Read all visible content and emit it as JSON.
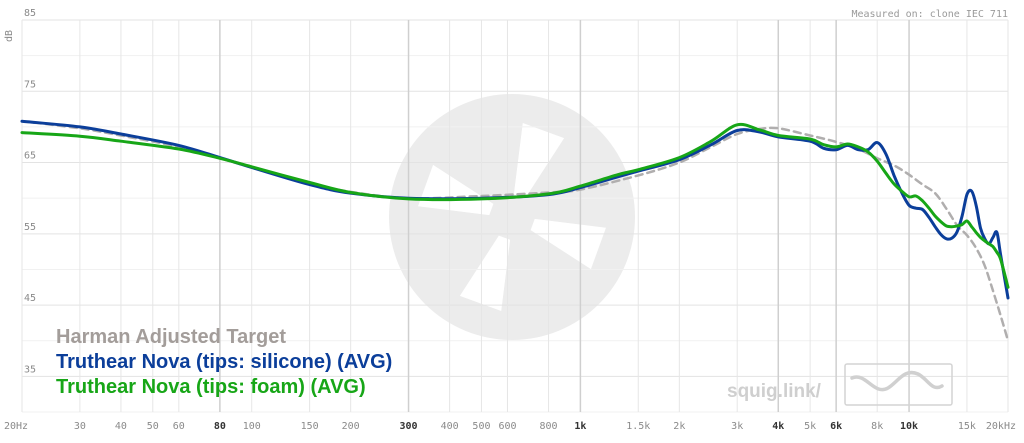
{
  "chart_data": {
    "type": "line",
    "measured_on": "Measured on: clone IEC 711",
    "ylabel": "dB",
    "x_scale": "log",
    "xlim": [
      20,
      20000
    ],
    "ylim": [
      30,
      85
    ],
    "y_ticks": [
      {
        "value": 85,
        "label": "85"
      },
      {
        "value": 75,
        "label": "75"
      },
      {
        "value": 65,
        "label": "65"
      },
      {
        "value": 55,
        "label": "55"
      },
      {
        "value": 45,
        "label": "45"
      },
      {
        "value": 35,
        "label": "35"
      }
    ],
    "x_ticks": [
      {
        "value": 20,
        "label": "20Hz",
        "bold": false,
        "major": false
      },
      {
        "value": 30,
        "label": "30",
        "bold": false,
        "major": false
      },
      {
        "value": 40,
        "label": "40",
        "bold": false,
        "major": false
      },
      {
        "value": 50,
        "label": "50",
        "bold": false,
        "major": false
      },
      {
        "value": 60,
        "label": "60",
        "bold": false,
        "major": false
      },
      {
        "value": 80,
        "label": "80",
        "bold": true,
        "major": true
      },
      {
        "value": 100,
        "label": "100",
        "bold": false,
        "major": false
      },
      {
        "value": 150,
        "label": "150",
        "bold": false,
        "major": false
      },
      {
        "value": 200,
        "label": "200",
        "bold": false,
        "major": false
      },
      {
        "value": 300,
        "label": "300",
        "bold": true,
        "major": true
      },
      {
        "value": 400,
        "label": "400",
        "bold": false,
        "major": false
      },
      {
        "value": 500,
        "label": "500",
        "bold": false,
        "major": false
      },
      {
        "value": 600,
        "label": "600",
        "bold": false,
        "major": false
      },
      {
        "value": 800,
        "label": "800",
        "bold": false,
        "major": false
      },
      {
        "value": 1000,
        "label": "1k",
        "bold": true,
        "major": true
      },
      {
        "value": 1500,
        "label": "1.5k",
        "bold": false,
        "major": false
      },
      {
        "value": 2000,
        "label": "2k",
        "bold": false,
        "major": false
      },
      {
        "value": 3000,
        "label": "3k",
        "bold": false,
        "major": false
      },
      {
        "value": 4000,
        "label": "4k",
        "bold": true,
        "major": true
      },
      {
        "value": 5000,
        "label": "5k",
        "bold": false,
        "major": false
      },
      {
        "value": 6000,
        "label": "6k",
        "bold": true,
        "major": true
      },
      {
        "value": 8000,
        "label": "8k",
        "bold": false,
        "major": false
      },
      {
        "value": 10000,
        "label": "10k",
        "bold": true,
        "major": true
      },
      {
        "value": 15000,
        "label": "15k",
        "bold": false,
        "major": false
      },
      {
        "value": 20000,
        "label": "20kHz",
        "bold": false,
        "major": false
      }
    ],
    "grid": true,
    "legend_position": "bottom-left",
    "series": [
      {
        "name": "Harman Adjusted Target",
        "color": "#b0aeae",
        "legend_color": "#a39d9a",
        "dashed": true,
        "x": [
          20,
          30,
          40,
          60,
          80,
          100,
          150,
          200,
          300,
          500,
          800,
          1000,
          1500,
          2000,
          2500,
          3000,
          3500,
          4000,
          5000,
          6000,
          7000,
          8000,
          9000,
          10000,
          11000,
          12000,
          13000,
          14000,
          15000,
          16000,
          17000,
          18000,
          19000,
          20000
        ],
        "values": [
          70.8,
          69.8,
          68.8,
          67.2,
          65.6,
          64.3,
          62.1,
          60.9,
          60.0,
          60.3,
          60.8,
          61.2,
          63.2,
          65.0,
          67.2,
          69.0,
          69.7,
          69.8,
          68.8,
          67.9,
          66.9,
          65.6,
          64.6,
          63.3,
          61.9,
          60.7,
          58.5,
          56.2,
          54.8,
          53.0,
          50.5,
          47.0,
          43.5,
          40.0
        ]
      },
      {
        "name": "Truthear Nova (tips: silicone) (AVG)",
        "color": "#0b3e9a",
        "legend_color": "#0b3e9a",
        "dashed": false,
        "x": [
          20,
          30,
          40,
          60,
          80,
          100,
          150,
          200,
          300,
          500,
          800,
          1000,
          1300,
          1500,
          2000,
          2500,
          3000,
          3500,
          4000,
          5000,
          5500,
          6000,
          6500,
          7000,
          7500,
          8000,
          8500,
          9000,
          9500,
          10000,
          10500,
          11000,
          11500,
          12000,
          12500,
          13000,
          13500,
          14000,
          14500,
          15000,
          15500,
          16000,
          16500,
          17000,
          17500,
          18000,
          18500,
          19000,
          20000
        ],
        "values": [
          70.8,
          70.0,
          69.0,
          67.4,
          65.7,
          64.3,
          61.9,
          60.7,
          60.0,
          60.0,
          60.5,
          61.5,
          63.0,
          63.8,
          65.4,
          67.5,
          69.5,
          69.3,
          68.6,
          68.0,
          67.0,
          66.8,
          67.4,
          66.8,
          66.8,
          67.8,
          66.2,
          63.2,
          60.8,
          59.0,
          58.6,
          58.4,
          57.3,
          56.0,
          54.9,
          54.3,
          54.4,
          55.3,
          57.5,
          60.5,
          61.0,
          59.0,
          55.8,
          54.3,
          53.6,
          54.5,
          55.2,
          52.0,
          46.0
        ]
      },
      {
        "name": "Truthear Nova (tips: foam) (AVG)",
        "color": "#17a617",
        "legend_color": "#17a617",
        "dashed": false,
        "x": [
          20,
          30,
          40,
          60,
          80,
          100,
          150,
          200,
          300,
          500,
          800,
          1000,
          1300,
          1500,
          2000,
          2500,
          3000,
          3500,
          4000,
          5000,
          5500,
          6000,
          6500,
          7000,
          7500,
          8000,
          8500,
          9000,
          9500,
          10000,
          10500,
          11000,
          11500,
          12000,
          12500,
          13000,
          13500,
          14000,
          14500,
          15000,
          15500,
          16000,
          16500,
          17000,
          17500,
          18000,
          18500,
          19000,
          20000
        ],
        "values": [
          69.2,
          68.7,
          68.0,
          66.9,
          65.6,
          64.4,
          62.2,
          60.8,
          59.9,
          59.9,
          60.6,
          61.7,
          63.3,
          64.0,
          65.7,
          68.0,
          70.3,
          69.6,
          68.8,
          68.3,
          67.5,
          67.2,
          67.6,
          67.2,
          66.5,
          65.2,
          63.5,
          62.0,
          61.0,
          60.2,
          60.3,
          59.6,
          58.6,
          57.5,
          56.7,
          56.1,
          56.0,
          56.1,
          56.3,
          56.8,
          56.0,
          55.2,
          54.5,
          54.0,
          53.6,
          53.2,
          52.4,
          51.4,
          47.5
        ]
      }
    ]
  },
  "branding": {
    "site_label": "squig.link/"
  }
}
